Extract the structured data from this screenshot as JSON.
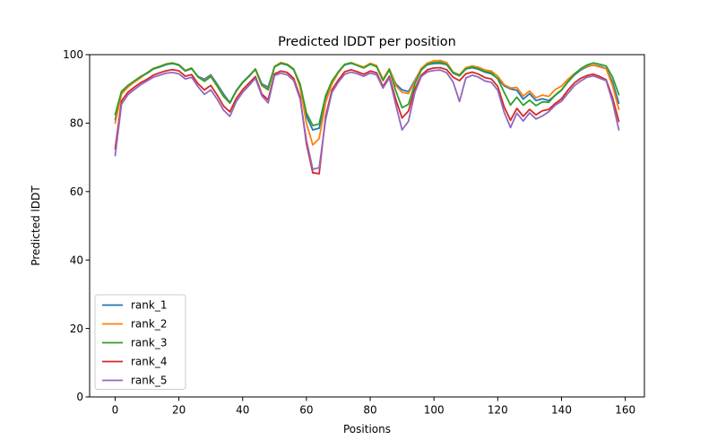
{
  "chart_data": {
    "type": "line",
    "title": "Predicted lDDT per position",
    "xlabel": "Positions",
    "ylabel": "Predicted lDDT",
    "xlim": [
      -8,
      166
    ],
    "ylim": [
      0,
      100
    ],
    "xticks": [
      0,
      20,
      40,
      60,
      80,
      100,
      120,
      140,
      160
    ],
    "yticks": [
      0,
      20,
      40,
      60,
      80,
      100
    ],
    "grid": false,
    "legend_position": "lower left",
    "frame_color": "#000000",
    "background_color": "#ffffff",
    "x": [
      0,
      2,
      4,
      6,
      8,
      10,
      12,
      14,
      16,
      18,
      20,
      22,
      24,
      26,
      28,
      30,
      32,
      34,
      36,
      38,
      40,
      42,
      44,
      46,
      48,
      50,
      52,
      54,
      56,
      58,
      60,
      62,
      64,
      66,
      68,
      70,
      72,
      74,
      76,
      78,
      80,
      82,
      84,
      86,
      88,
      90,
      92,
      94,
      96,
      98,
      100,
      102,
      104,
      106,
      108,
      110,
      112,
      114,
      116,
      118,
      120,
      122,
      124,
      126,
      128,
      130,
      132,
      134,
      136,
      138,
      140,
      142,
      144,
      146,
      148,
      150,
      152,
      154,
      156,
      158
    ],
    "series": [
      {
        "name": "rank_1",
        "color": "#1f77b4",
        "values": [
          81,
          89,
          91,
          92,
          93.5,
          94.5,
          95.8,
          96.4,
          97.1,
          97.4,
          96.9,
          95.2,
          95.9,
          93.6,
          92.8,
          94.1,
          91.4,
          88.5,
          86,
          89.5,
          92,
          93.8,
          95.8,
          91.5,
          90.5,
          96.5,
          97.4,
          97,
          95.6,
          91,
          82,
          78,
          78.5,
          87.5,
          92,
          94.9,
          97,
          97.5,
          96.9,
          96.2,
          97.3,
          96.7,
          92.5,
          95.8,
          91.5,
          89.7,
          89.2,
          92.5,
          95.8,
          97.1,
          97.4,
          97.5,
          97.1,
          94.6,
          93.8,
          95.8,
          96.2,
          95.7,
          94.9,
          94.4,
          93,
          90.9,
          90,
          89.6,
          87,
          88.6,
          86.6,
          87.1,
          86.6,
          88.1,
          89.6,
          92,
          94,
          95.5,
          96.5,
          97,
          96.6,
          96,
          92,
          85.8
        ]
      },
      {
        "name": "rank_2",
        "color": "#ff7f0e",
        "values": [
          80,
          88.5,
          90.5,
          92,
          93.2,
          94.7,
          96,
          96.6,
          97.3,
          97.6,
          97.1,
          95.4,
          96.1,
          93.4,
          92.4,
          93.8,
          91,
          88,
          85.8,
          89.3,
          91.8,
          93.6,
          95.9,
          91.2,
          90,
          96.6,
          97.7,
          97.2,
          95.8,
          90.5,
          80,
          73.6,
          75.5,
          86,
          91.5,
          94.7,
          97.1,
          97.7,
          97,
          96.4,
          97.5,
          96.8,
          92.8,
          95.9,
          91,
          89,
          88.6,
          92.2,
          96,
          97.6,
          98.2,
          98.3,
          97.7,
          94.9,
          94.1,
          96.2,
          96.7,
          96.3,
          95.5,
          95.2,
          93.7,
          91.2,
          90.3,
          90.4,
          87.9,
          89.4,
          87.4,
          88.2,
          87.8,
          89.8,
          90.8,
          92.8,
          94.4,
          95.7,
          96.7,
          96.9,
          96.4,
          95.9,
          91,
          84
        ]
      },
      {
        "name": "rank_3",
        "color": "#2ca02c",
        "values": [
          82.5,
          89.3,
          91,
          92.3,
          93.6,
          94.6,
          95.9,
          96.5,
          97.2,
          97.5,
          97,
          95.3,
          96,
          93.5,
          92.2,
          93.6,
          90.8,
          87.8,
          85.9,
          89.4,
          91.9,
          93.7,
          95.7,
          91,
          89.7,
          96.4,
          97.5,
          97.1,
          95.7,
          91.5,
          83,
          79.3,
          79.8,
          88,
          92.3,
          95,
          97.2,
          97.6,
          96.8,
          96.1,
          97.2,
          96.5,
          92.4,
          95.6,
          89.5,
          84.5,
          85.5,
          91.5,
          95.5,
          97.2,
          97.7,
          97.8,
          97.2,
          94.7,
          93.9,
          95.9,
          96.4,
          95.9,
          95.1,
          94.7,
          92.9,
          89,
          85.3,
          87.6,
          85.2,
          86.7,
          85.1,
          86.2,
          86.1,
          88.2,
          89.7,
          92.1,
          94.2,
          95.9,
          97,
          97.6,
          97.2,
          96.7,
          93.5,
          88.3
        ]
      },
      {
        "name": "rank_4",
        "color": "#d62728",
        "values": [
          72.5,
          86.5,
          89,
          90.5,
          91.8,
          92.8,
          94,
          94.7,
          95.3,
          95.6,
          95.3,
          93.7,
          94.2,
          91.5,
          89.7,
          91,
          88.2,
          85,
          83.3,
          87.2,
          89.8,
          91.7,
          93.6,
          88.5,
          86.8,
          94.4,
          95.2,
          94.8,
          93.1,
          87.7,
          74,
          65.5,
          65.2,
          82,
          89.7,
          92.6,
          95,
          95.6,
          95,
          94.3,
          95.2,
          94.7,
          90.7,
          93.7,
          87,
          81.5,
          83.5,
          90,
          94,
          95.6,
          96.1,
          96.2,
          95.6,
          93.4,
          92.4,
          94.4,
          94.9,
          94.3,
          93.3,
          92.9,
          90.7,
          84.8,
          80.8,
          84.3,
          82,
          84,
          82.4,
          83.6,
          84,
          85.7,
          87.1,
          89.6,
          91.7,
          93.1,
          93.9,
          94.3,
          93.6,
          92.7,
          87.5,
          80.5
        ]
      },
      {
        "name": "rank_5",
        "color": "#9467bd",
        "values": [
          70.5,
          85.5,
          88.3,
          89.8,
          91.2,
          92.3,
          93.4,
          94,
          94.6,
          94.8,
          94.4,
          92.9,
          93.4,
          90.6,
          88.4,
          89.7,
          87,
          83.8,
          82,
          86.3,
          89,
          91,
          93.1,
          88,
          85.9,
          93.9,
          94.6,
          94.1,
          92.4,
          87.1,
          75,
          66.5,
          67,
          81,
          89,
          92,
          94.3,
          94.9,
          94.4,
          93.7,
          94.6,
          94.1,
          90.2,
          93.2,
          85.5,
          78,
          80.5,
          89,
          93.6,
          95,
          95.4,
          95.5,
          94.7,
          92,
          86.3,
          93.2,
          94,
          93.4,
          92.3,
          91.9,
          89.6,
          83.2,
          78.7,
          82.9,
          80.6,
          83,
          81.2,
          82.1,
          83.3,
          85.2,
          86.4,
          88.7,
          90.9,
          92.3,
          93.4,
          93.8,
          93.1,
          92.4,
          86.3,
          78
        ]
      }
    ]
  }
}
